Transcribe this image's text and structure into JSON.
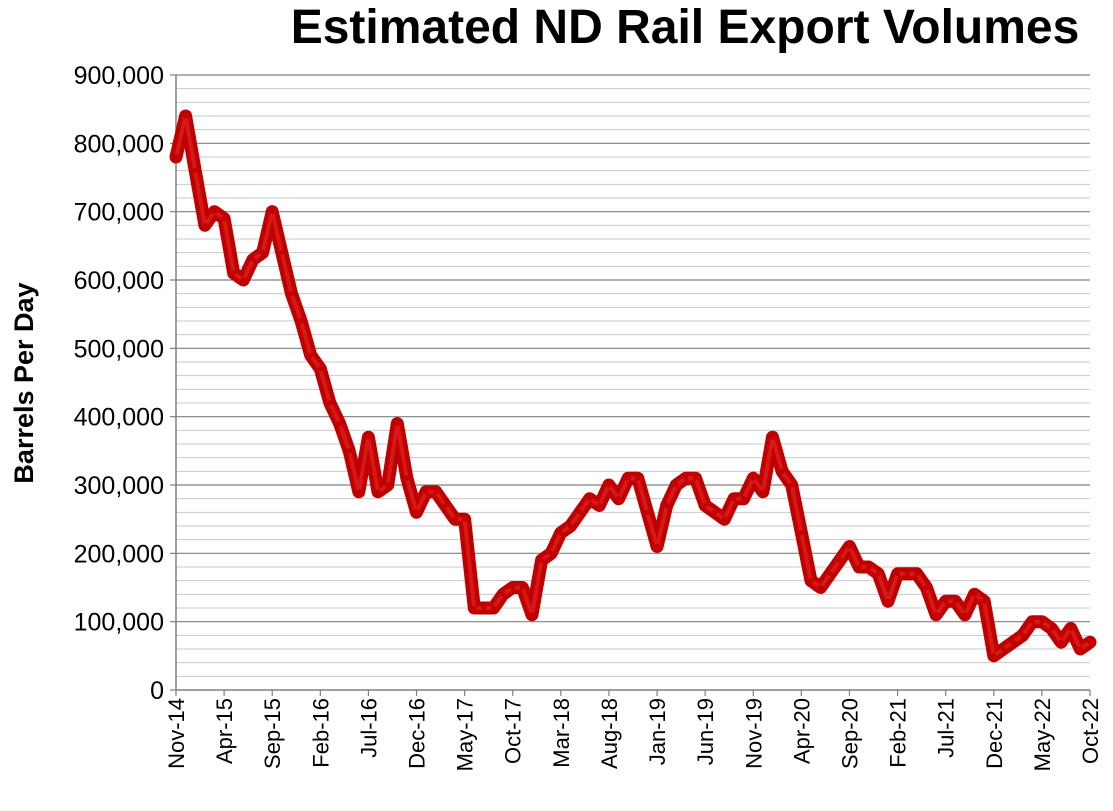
{
  "chart_data": {
    "type": "line",
    "title": "Estimated ND Rail Export Volumes",
    "xlabel": "",
    "ylabel": "Barrels Per Day",
    "ylim": [
      0,
      900000
    ],
    "yticks": [
      "0",
      "100,000",
      "200,000",
      "300,000",
      "400,000",
      "500,000",
      "600,000",
      "700,000",
      "800,000",
      "900,000"
    ],
    "grid": true,
    "legend": "none",
    "line_color": "#c00000",
    "x_tick_labels": [
      "Nov-14",
      "Apr-15",
      "Sep-15",
      "Feb-16",
      "Jul-16",
      "Dec-16",
      "May-17",
      "Oct-17",
      "Mar-18",
      "Aug-18",
      "Jan-19",
      "Jun-19",
      "Nov-19",
      "Apr-20",
      "Sep-20",
      "Feb-21",
      "Jul-21",
      "Dec-21",
      "May-22",
      "Oct-22"
    ],
    "x": [
      "Nov-14",
      "Dec-14",
      "Jan-15",
      "Feb-15",
      "Mar-15",
      "Apr-15",
      "May-15",
      "Jun-15",
      "Jul-15",
      "Aug-15",
      "Sep-15",
      "Oct-15",
      "Nov-15",
      "Dec-15",
      "Jan-16",
      "Feb-16",
      "Mar-16",
      "Apr-16",
      "May-16",
      "Jun-16",
      "Jul-16",
      "Aug-16",
      "Sep-16",
      "Oct-16",
      "Nov-16",
      "Dec-16",
      "Jan-17",
      "Feb-17",
      "Mar-17",
      "Apr-17",
      "May-17",
      "Jun-17",
      "Jul-17",
      "Aug-17",
      "Sep-17",
      "Oct-17",
      "Nov-17",
      "Dec-17",
      "Jan-18",
      "Feb-18",
      "Mar-18",
      "Apr-18",
      "May-18",
      "Jun-18",
      "Jul-18",
      "Aug-18",
      "Sep-18",
      "Oct-18",
      "Nov-18",
      "Dec-18",
      "Jan-19",
      "Feb-19",
      "Mar-19",
      "Apr-19",
      "May-19",
      "Jun-19",
      "Jul-19",
      "Aug-19",
      "Sep-19",
      "Oct-19",
      "Nov-19",
      "Dec-19",
      "Jan-20",
      "Feb-20",
      "Mar-20",
      "Apr-20",
      "May-20",
      "Jun-20",
      "Jul-20",
      "Aug-20",
      "Sep-20",
      "Oct-20",
      "Nov-20",
      "Dec-20",
      "Jan-21",
      "Feb-21",
      "Mar-21",
      "Apr-21",
      "May-21",
      "Jun-21",
      "Jul-21",
      "Aug-21",
      "Sep-21",
      "Oct-21",
      "Nov-21",
      "Dec-21",
      "Jan-22",
      "Feb-22",
      "Mar-22",
      "Apr-22",
      "May-22",
      "Jun-22",
      "Jul-22",
      "Aug-22",
      "Sep-22",
      "Oct-22"
    ],
    "series": [
      {
        "values": [
          780000,
          840000,
          760000,
          680000,
          700000,
          690000,
          610000,
          600000,
          630000,
          640000,
          700000,
          640000,
          580000,
          540000,
          490000,
          470000,
          420000,
          390000,
          350000,
          290000,
          370000,
          290000,
          300000,
          390000,
          310000,
          260000,
          290000,
          290000,
          270000,
          250000,
          250000,
          120000,
          120000,
          120000,
          140000,
          150000,
          150000,
          110000,
          190000,
          200000,
          230000,
          240000,
          260000,
          280000,
          270000,
          300000,
          280000,
          310000,
          310000,
          260000,
          210000,
          270000,
          300000,
          310000,
          310000,
          270000,
          260000,
          250000,
          280000,
          280000,
          310000,
          290000,
          370000,
          320000,
          300000,
          230000,
          160000,
          150000,
          170000,
          190000,
          210000,
          180000,
          180000,
          170000,
          130000,
          170000,
          170000,
          170000,
          150000,
          110000,
          130000,
          130000,
          110000,
          140000,
          130000,
          50000,
          60000,
          70000,
          80000,
          100000,
          100000,
          90000,
          70000,
          90000,
          60000,
          70000
        ]
      }
    ]
  }
}
